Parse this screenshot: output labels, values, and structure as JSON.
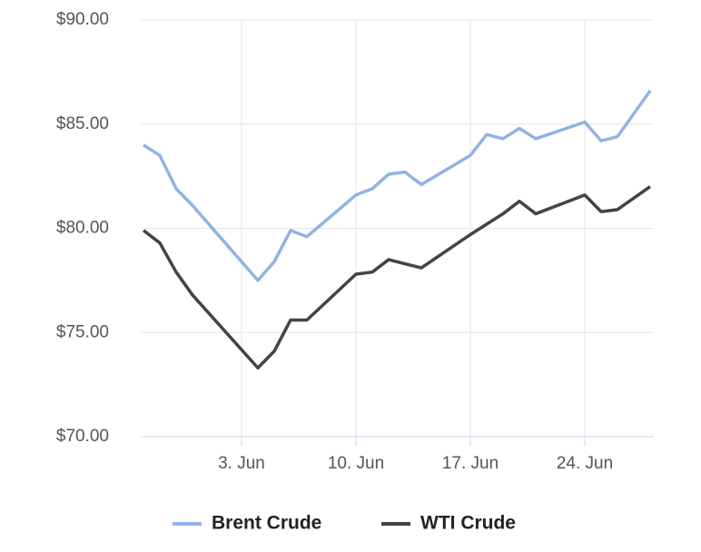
{
  "chart_data": {
    "type": "line",
    "x": [
      "28. May",
      "29. May",
      "30. May",
      "31. May",
      "4. Jun",
      "5. Jun",
      "6. Jun",
      "7. Jun",
      "10. Jun",
      "11. Jun",
      "12. Jun",
      "13. Jun",
      "14. Jun",
      "17. Jun",
      "18. Jun",
      "19. Jun",
      "20. Jun",
      "21. Jun",
      "24. Jun",
      "25. Jun",
      "26. Jun",
      "28. Jun"
    ],
    "series": [
      {
        "name": "Brent Crude",
        "color": "#8fb4e3",
        "values": [
          84.0,
          83.5,
          81.9,
          81.1,
          77.5,
          78.4,
          79.9,
          79.6,
          81.6,
          81.9,
          82.6,
          82.7,
          82.1,
          83.5,
          84.5,
          84.3,
          84.8,
          84.3,
          85.1,
          84.2,
          84.4,
          86.6
        ]
      },
      {
        "name": "WTI Crude",
        "color": "#434348",
        "values": [
          79.9,
          79.3,
          77.9,
          76.8,
          73.3,
          74.1,
          75.6,
          75.6,
          77.8,
          77.9,
          78.5,
          78.3,
          78.1,
          79.7,
          80.2,
          80.7,
          81.3,
          80.7,
          81.6,
          80.8,
          80.9,
          82.0
        ]
      }
    ],
    "xticks": [
      "3. Jun",
      "10. Jun",
      "17. Jun",
      "24. Jun"
    ],
    "ylim": [
      70,
      90
    ],
    "yticks": [
      {
        "value": 70,
        "label": "$70.00"
      },
      {
        "value": 75,
        "label": "$75.00"
      },
      {
        "value": 80,
        "label": "$80.00"
      },
      {
        "value": 85,
        "label": "$85.00"
      },
      {
        "value": 90,
        "label": "$90.00"
      }
    ],
    "grid": true,
    "legend": "bottom"
  }
}
